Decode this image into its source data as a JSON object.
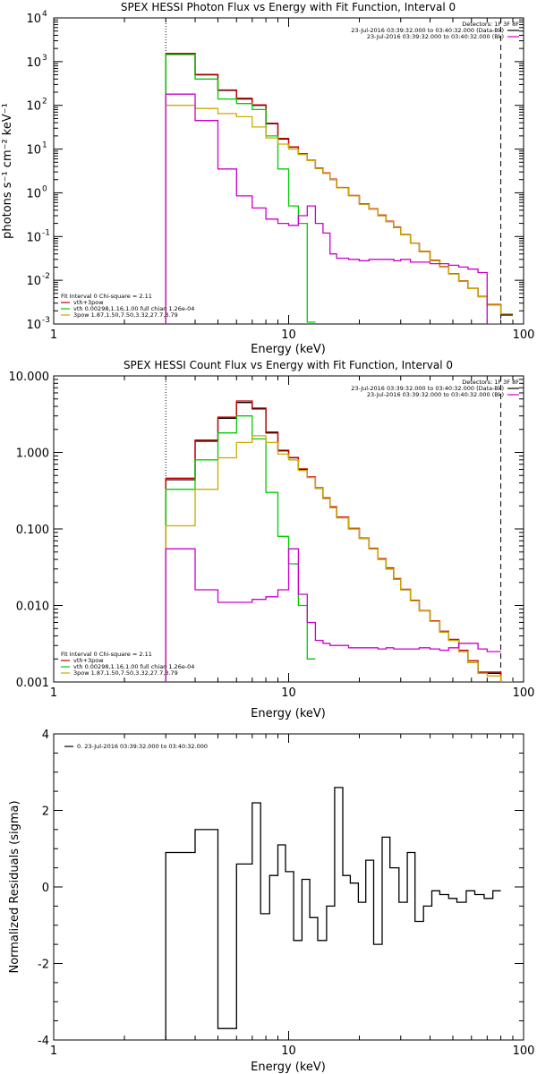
{
  "chart_data": [
    {
      "type": "line",
      "title": "SPEX HESSI Photon Flux vs Energy with Fit Function, Interval 0",
      "xlabel": "Energy (keV)",
      "ylabel": "photons s⁻¹ cm⁻² keV⁻¹",
      "xscale": "log",
      "yscale": "log",
      "xlim": [
        1,
        100
      ],
      "ylim": [
        0.001,
        10000
      ],
      "xticks": [
        {
          "v": 1,
          "label": "1"
        },
        {
          "v": 10,
          "label": "10"
        },
        {
          "v": 100,
          "label": "100"
        }
      ],
      "yticks": [
        {
          "v": 0.001,
          "base": "10",
          "exp": "-3"
        },
        {
          "v": 0.01,
          "base": "10",
          "exp": "-2"
        },
        {
          "v": 0.1,
          "base": "10",
          "exp": "-1"
        },
        {
          "v": 1,
          "base": "10",
          "exp": "0"
        },
        {
          "v": 10,
          "base": "10",
          "exp": "1"
        },
        {
          "v": 100,
          "base": "10",
          "exp": "2"
        },
        {
          "v": 1000,
          "base": "10",
          "exp": "3"
        },
        {
          "v": 10000,
          "base": "10",
          "exp": "4"
        }
      ],
      "vlines": [
        {
          "x": 3.0,
          "style": "dotted"
        },
        {
          "x": 80.0,
          "style": "dashed"
        }
      ],
      "edges": [
        3.0,
        4.0,
        5.0,
        6.0,
        7.0,
        8.0,
        9.0,
        10.0,
        11.0,
        12.0,
        13.0,
        14.0,
        15.0,
        16.0,
        18.0,
        20.0,
        22.0,
        24.0,
        26.0,
        28.0,
        30.0,
        33.0,
        36.0,
        40.0,
        44.0,
        48.0,
        53.0,
        58.0,
        64.0,
        70.0,
        80.0,
        90.0
      ],
      "legend_top": {
        "header": "Detectors: 1F 3F 8F",
        "entries": [
          {
            "label": "23-Jul-2016 03:39:32.000 to 03:40:32.000 (Data-Bk)",
            "color": "#000000"
          },
          {
            "label": "23-Jul-2016 03:39:32.000 to 03:40:32.000 (Bk)",
            "color": "#cc00cc"
          }
        ]
      },
      "legend_bottom": {
        "header": "Fit Interval 0   Chi-square = 2.11",
        "entries": [
          {
            "label": "vth+3pow",
            "color": "#cc0000"
          },
          {
            "label": "vth 0.00298,1.16,1.00   full chian 1.26e-04",
            "color": "#00cc00"
          },
          {
            "label": "3pow 1.87,1.50,7.50,3.32,27.7,3.79",
            "color": "#ccaa00"
          }
        ]
      },
      "series": [
        {
          "color": "#000000",
          "values": [
            1500,
            500,
            220,
            140,
            100,
            38,
            17,
            11,
            7.6,
            5.5,
            3.6,
            2.8,
            2.0,
            1.3,
            0.85,
            0.55,
            0.42,
            0.3,
            0.22,
            0.16,
            0.11,
            0.07,
            0.045,
            0.028,
            0.02,
            0.014,
            0.0095,
            0.0065,
            0.0042,
            0.0027,
            0.0016
          ]
        },
        {
          "color": "#cc0000",
          "values": [
            1550,
            510,
            225,
            145,
            103,
            39,
            17.5,
            11.2,
            7.8,
            5.6,
            3.7,
            2.85,
            2.05,
            1.32,
            0.87,
            0.56,
            0.43,
            0.31,
            0.225,
            0.165,
            0.112,
            0.071,
            0.046,
            0.029,
            0.0205,
            0.0143,
            0.0097,
            0.0066,
            0.0043,
            0.0028,
            0.0017
          ]
        },
        {
          "color": "#00cc00",
          "values": [
            1450,
            400,
            140,
            110,
            80,
            20,
            3.5,
            0.5,
            0.2,
            0.0011,
            null,
            null,
            null,
            null,
            null,
            null,
            null,
            null,
            null,
            null,
            null,
            null,
            null,
            null,
            null,
            null,
            null,
            null,
            null,
            null,
            null
          ]
        },
        {
          "color": "#ccaa00",
          "values": [
            100,
            85,
            65,
            55,
            32,
            18,
            13,
            10,
            7.5,
            5.5,
            3.6,
            2.8,
            2.0,
            1.3,
            0.85,
            0.55,
            0.42,
            0.3,
            0.22,
            0.16,
            0.11,
            0.07,
            0.045,
            0.028,
            0.02,
            0.014,
            0.0095,
            0.0065,
            0.0042,
            0.0027,
            0.0017
          ]
        },
        {
          "color": "#cc00cc",
          "values": [
            180,
            45,
            3.5,
            0.85,
            0.45,
            0.25,
            0.2,
            0.18,
            0.3,
            0.5,
            0.2,
            0.12,
            0.04,
            0.032,
            0.03,
            0.028,
            0.03,
            0.03,
            0.03,
            0.028,
            0.03,
            0.026,
            0.026,
            0.024,
            0.024,
            0.022,
            0.02,
            0.018,
            0.015,
            0.001,
            null
          ]
        }
      ]
    },
    {
      "type": "line",
      "title": "SPEX HESSI Count Flux vs Energy with Fit Function, Interval 0",
      "xlabel": "Energy (keV)",
      "ylabel": "",
      "xscale": "log",
      "yscale": "log",
      "xlim": [
        1,
        100
      ],
      "ylim": [
        0.001,
        10
      ],
      "xticks": [
        {
          "v": 1,
          "label": "1"
        },
        {
          "v": 10,
          "label": "10"
        },
        {
          "v": 100,
          "label": "100"
        }
      ],
      "yticks": [
        {
          "v": 0.001,
          "label": "0.001"
        },
        {
          "v": 0.01,
          "label": "0.010"
        },
        {
          "v": 0.1,
          "label": "0.100"
        },
        {
          "v": 1,
          "label": "1.000"
        },
        {
          "v": 10,
          "label": "10.000"
        }
      ],
      "vlines": [
        {
          "x": 3.0,
          "style": "dotted"
        },
        {
          "x": 80.0,
          "style": "dashed"
        }
      ],
      "edges": [
        3.0,
        4.0,
        5.0,
        6.0,
        7.0,
        8.0,
        9.0,
        10.0,
        11.0,
        12.0,
        13.0,
        14.0,
        15.0,
        16.0,
        18.0,
        20.0,
        22.0,
        24.0,
        26.0,
        28.0,
        30.0,
        33.0,
        36.0,
        40.0,
        44.0,
        48.0,
        53.0,
        58.0,
        64.0,
        70.0,
        80.0,
        90.0
      ],
      "legend_top": {
        "header": "Detectors: 1F 3F 8F",
        "entries": [
          {
            "label": "23-Jul-2016 03:39:32.000 to 03:40:32.000 (Data-Bk)",
            "color": "#000000"
          },
          {
            "label": "23-Jul-2016 03:39:32.000 to 03:40:32.000 (Bk)",
            "color": "#cc00cc"
          }
        ]
      },
      "legend_bottom": {
        "header": "Fit Interval 0   Chi-square = 2.11",
        "entries": [
          {
            "label": "vth+3pow",
            "color": "#cc0000"
          },
          {
            "label": "vth 0.00298,1.16,1.00   full chian 1.26e-04",
            "color": "#00cc00"
          },
          {
            "label": "3pow 1.87,1.50,7.50,3.32,27.7,3.79",
            "color": "#ccaa00"
          }
        ]
      },
      "series": [
        {
          "color": "#000000",
          "values": [
            0.44,
            1.4,
            2.8,
            4.5,
            3.7,
            1.8,
            1.05,
            0.85,
            0.6,
            0.47,
            0.34,
            0.25,
            0.19,
            0.14,
            0.1,
            0.075,
            0.055,
            0.04,
            0.03,
            0.022,
            0.016,
            0.0115,
            0.0085,
            0.0062,
            0.0045,
            0.0035,
            0.0025,
            0.0018,
            0.0013,
            0.0013,
            0.0009
          ]
        },
        {
          "color": "#cc0000",
          "values": [
            0.46,
            1.45,
            2.9,
            4.7,
            3.8,
            1.85,
            1.07,
            0.86,
            0.61,
            0.48,
            0.345,
            0.255,
            0.195,
            0.143,
            0.102,
            0.076,
            0.056,
            0.041,
            0.031,
            0.0225,
            0.0163,
            0.0117,
            0.0086,
            0.0063,
            0.0046,
            0.0036,
            0.0026,
            0.0019,
            0.00135,
            0.00135,
            0.00093
          ]
        },
        {
          "color": "#00cc00",
          "values": [
            0.33,
            0.8,
            1.8,
            3.0,
            1.5,
            0.3,
            0.08,
            0.035,
            0.01,
            0.002,
            null,
            null,
            null,
            null,
            null,
            null,
            null,
            null,
            null,
            null,
            null,
            null,
            null,
            null,
            null,
            null,
            null,
            null,
            null,
            null,
            null
          ]
        },
        {
          "color": "#ccaa00",
          "values": [
            0.11,
            0.33,
            0.85,
            1.35,
            1.65,
            1.35,
            0.95,
            0.8,
            0.58,
            0.47,
            0.34,
            0.25,
            0.19,
            0.14,
            0.1,
            0.075,
            0.055,
            0.04,
            0.03,
            0.022,
            0.016,
            0.0115,
            0.0085,
            0.0062,
            0.0045,
            0.0035,
            0.0025,
            0.0018,
            0.0013,
            0.0012,
            0.0009
          ]
        },
        {
          "color": "#cc00cc",
          "values": [
            0.055,
            0.016,
            0.011,
            0.011,
            0.012,
            0.013,
            0.016,
            0.055,
            0.014,
            0.006,
            0.0035,
            0.0032,
            0.003,
            0.003,
            0.0028,
            0.0028,
            0.0028,
            0.0027,
            0.0028,
            0.0027,
            0.0027,
            0.0027,
            0.0028,
            0.0027,
            0.0026,
            0.0028,
            0.0032,
            0.0032,
            0.0027,
            0.0025,
            null
          ]
        }
      ]
    },
    {
      "type": "line",
      "title": "",
      "xlabel": "Energy (keV)",
      "ylabel": "Normalized Residuals (sigma)",
      "xscale": "log",
      "yscale": "linear",
      "xlim": [
        1,
        100
      ],
      "ylim": [
        -4,
        4
      ],
      "xticks": [
        {
          "v": 1,
          "label": "1"
        },
        {
          "v": 10,
          "label": "10"
        },
        {
          "v": 100,
          "label": "100"
        }
      ],
      "yticks": [
        {
          "v": -4,
          "label": "-4"
        },
        {
          "v": -2,
          "label": "-2"
        },
        {
          "v": 0,
          "label": "0"
        },
        {
          "v": 2,
          "label": "2"
        },
        {
          "v": 4,
          "label": "4"
        }
      ],
      "legend_top": {
        "header": "",
        "entries": [
          {
            "label": "0. 23-Jul-2016 03:39:32.000 to 03:40:32.000",
            "color": "#000000"
          }
        ]
      },
      "edges": [
        3.0,
        4.0,
        5.0,
        6.0,
        7.0,
        7.6,
        8.3,
        9.0,
        9.7,
        10.5,
        11.4,
        12.3,
        13.3,
        14.5,
        15.7,
        17.0,
        18.3,
        19.8,
        21.3,
        23.0,
        25.0,
        27.0,
        29.5,
        32.0,
        34.5,
        37.5,
        40.7,
        44.0,
        48.0,
        52.0,
        57.0,
        62.0,
        68.0,
        74.0,
        80.0
      ],
      "series": [
        {
          "color": "#000000",
          "values": [
            0.9,
            1.5,
            -3.7,
            0.6,
            2.2,
            -0.7,
            0.3,
            1.1,
            0.4,
            -1.4,
            0.2,
            -0.8,
            -1.4,
            -0.5,
            2.6,
            0.3,
            0.1,
            -0.4,
            0.7,
            -1.5,
            1.3,
            0.5,
            -0.4,
            0.9,
            -0.9,
            -0.5,
            -0.1,
            -0.2,
            -0.3,
            -0.4,
            -0.1,
            -0.2,
            -0.3,
            -0.1
          ]
        }
      ]
    }
  ]
}
